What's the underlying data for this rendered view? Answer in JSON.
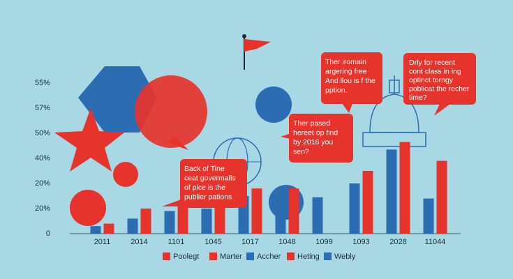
{
  "chart_data": {
    "type": "bar",
    "y_labels": [
      "55%",
      "57%",
      "50%",
      "40%",
      "20%",
      "20%",
      "0"
    ],
    "ylim": [
      0,
      60
    ],
    "categories": [
      "2011",
      "2014",
      "1101",
      "1045",
      "1017",
      "1048",
      "1099",
      "1093",
      "2028",
      "11044"
    ],
    "series": [
      {
        "color": "#2b6cb3",
        "values": [
          3,
          6,
          9,
          10,
          15,
          17.5,
          14.5,
          20,
          33.5,
          14
        ]
      },
      {
        "color": "#e6332c",
        "values": [
          4,
          10,
          12.5,
          15,
          18,
          18,
          null,
          25,
          36.5,
          29
        ]
      }
    ],
    "legend": [
      {
        "label": "Poolegt",
        "color": "#e6332c"
      },
      {
        "label": "Marter",
        "color": "#e6332c"
      },
      {
        "label": "Accher",
        "color": "#2b6cb3"
      },
      {
        "label": "Heting",
        "color": "#e6332c"
      },
      {
        "label": "Webly",
        "color": "#2b6cb3"
      }
    ],
    "annotations": [
      {
        "lines": [
          "Ther iromain",
          "argering free",
          "And llou is f the",
          "pption."
        ]
      },
      {
        "lines": [
          "Drly for recent",
          "cont class in ing",
          "optinct torngy",
          "poblicat the recher",
          "time?"
        ]
      },
      {
        "lines": [
          "Ther pased",
          "hereet op find",
          "by 2016 you",
          "sen?"
        ]
      },
      {
        "lines": [
          "Back of Tine",
          "ceat govermalls",
          "of pice is the",
          "publier pations"
        ]
      }
    ]
  }
}
